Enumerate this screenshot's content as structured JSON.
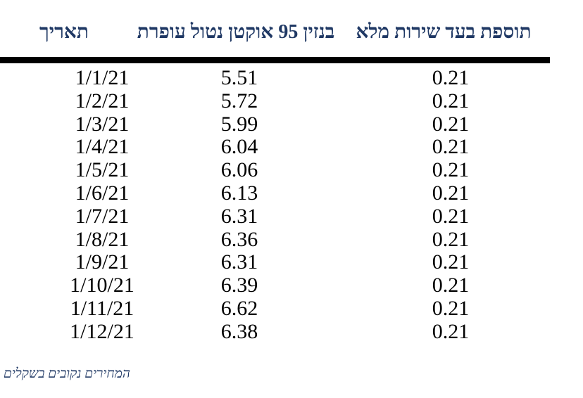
{
  "table": {
    "headers": {
      "date": "תאריך",
      "benzin95": "בנזין 95 אוקטן נטול עופרת",
      "full_service": "תוספת בעד שירות מלא"
    },
    "rows": [
      {
        "date": "1/1/21",
        "benzin95": "5.51",
        "full_service": "0.21"
      },
      {
        "date": "1/2/21",
        "benzin95": "5.72",
        "full_service": "0.21"
      },
      {
        "date": "1/3/21",
        "benzin95": "5.99",
        "full_service": "0.21"
      },
      {
        "date": "1/4/21",
        "benzin95": "6.04",
        "full_service": "0.21"
      },
      {
        "date": "1/5/21",
        "benzin95": "6.06",
        "full_service": "0.21"
      },
      {
        "date": "1/6/21",
        "benzin95": "6.13",
        "full_service": "0.21"
      },
      {
        "date": "1/7/21",
        "benzin95": "6.31",
        "full_service": "0.21"
      },
      {
        "date": "1/8/21",
        "benzin95": "6.36",
        "full_service": "0.21"
      },
      {
        "date": "1/9/21",
        "benzin95": "6.31",
        "full_service": "0.21"
      },
      {
        "date": "1/10/21",
        "benzin95": "6.39",
        "full_service": "0.21"
      },
      {
        "date": "1/11/21",
        "benzin95": "6.62",
        "full_service": "0.21"
      },
      {
        "date": "1/12/21",
        "benzin95": "6.38",
        "full_service": "0.21"
      }
    ]
  },
  "footnote": "המחירים נקובים בשקלים",
  "colors": {
    "header_text": "#1f3864",
    "body_text": "#000000",
    "rule": "#000000",
    "background": "#ffffff"
  }
}
